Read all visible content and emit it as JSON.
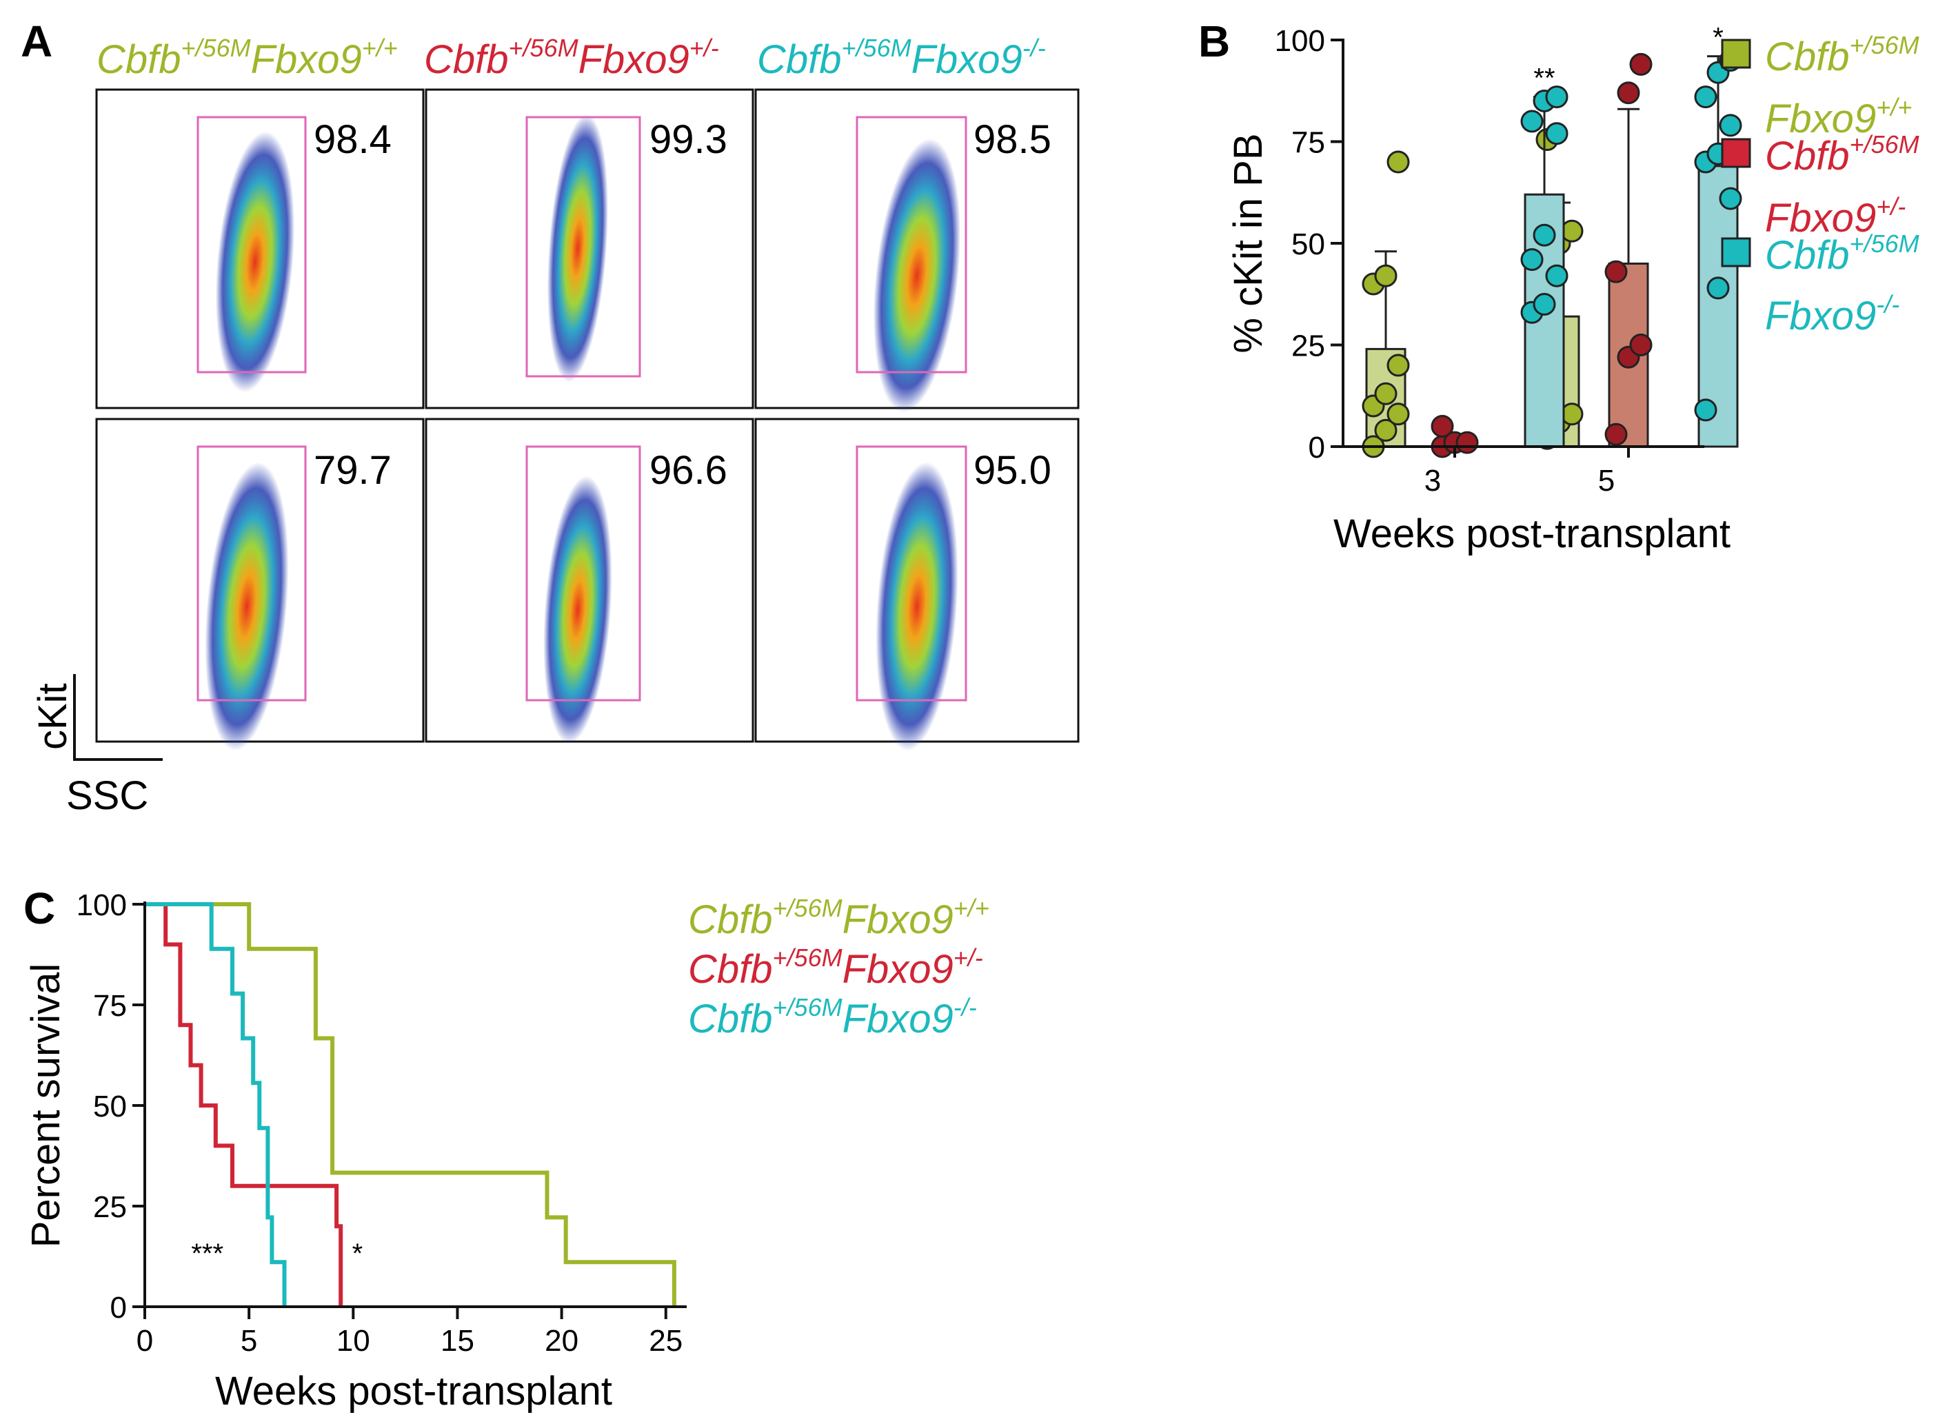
{
  "panels": {
    "a": {
      "letter": "A",
      "genotypes": [
        {
          "base": "Cbfb",
          "sup1": "+/56M",
          "gene2": "Fbxo9",
          "sup2": "+/+",
          "color": "#9fb52a"
        },
        {
          "base": "Cbfb",
          "sup1": "+/56M",
          "gene2": "Fbxo9",
          "sup2": "+/-",
          "color": "#d02536"
        },
        {
          "base": "Cbfb",
          "sup1": "+/56M",
          "gene2": "Fbxo9",
          "sup2": "-/-",
          "color": "#1cb9bd"
        }
      ],
      "gate_values": [
        [
          "98.4",
          "99.3",
          "98.5"
        ],
        [
          "79.7",
          "96.6",
          "95.0"
        ]
      ],
      "y_axis_label": "cKit",
      "x_axis_label": "SSC",
      "gate_color": "#e066b8"
    },
    "b": {
      "letter": "B",
      "legend": [
        {
          "line1": "Cbfb",
          "sup1": "+/56M",
          "line2": "Fbxo9",
          "sup2": "+/+",
          "color": "#9fb52a"
        },
        {
          "line1": "Cbfb",
          "sup1": "+/56M",
          "line2": "Fbxo9",
          "sup2": "+/-",
          "color": "#d02536"
        },
        {
          "line1": "Cbfb",
          "sup1": "+/56M",
          "line2": "Fbxo9",
          "sup2": "-/-",
          "color": "#1cb9bd"
        }
      ]
    },
    "c": {
      "letter": "C",
      "legend": [
        {
          "base": "Cbfb",
          "sup1": "+/56M",
          "gene2": "Fbxo9",
          "sup2": "+/+",
          "color": "#9fb52a"
        },
        {
          "base": "Cbfb",
          "sup1": "+/56M",
          "gene2": "Fbxo9",
          "sup2": "+/-",
          "color": "#d02536"
        },
        {
          "base": "Cbfb",
          "sup1": "+/56M",
          "gene2": "Fbxo9",
          "sup2": "-/-",
          "color": "#1cb9bd"
        }
      ]
    }
  },
  "chart_data": [
    {
      "id": "B",
      "type": "bar",
      "ylabel": "% cKit in PB",
      "xlabel": "Weeks post-transplant",
      "categories": [
        "3",
        "5"
      ],
      "ylim": [
        0,
        100
      ],
      "yticks": [
        0,
        25,
        50,
        75,
        100
      ],
      "series": [
        {
          "name": "Cbfb+/56M Fbxo9+/+",
          "fill": "#c9d68e",
          "point_color": "#9fb52a",
          "means": [
            24,
            32
          ],
          "sd_upper": [
            48,
            60
          ],
          "points": [
            [
              0,
              4,
              8,
              10,
              13,
              20,
              40,
              42,
              70
            ],
            [
              2,
              6,
              8,
              10,
              50,
              53,
              75.5
            ]
          ]
        },
        {
          "name": "Cbfb+/56M Fbxo9+/-",
          "fill": "#c97f6e",
          "point_color": "#9b1b24",
          "means": [
            1.5,
            45
          ],
          "sd_upper": [
            1.5,
            83
          ],
          "points": [
            [
              0,
              1,
              1,
              5
            ],
            [
              3,
              22,
              25,
              43,
              87,
              94
            ]
          ]
        },
        {
          "name": "Cbfb+/56M Fbxo9-/-",
          "fill": "#98d3d6",
          "point_color": "#1cb9bd",
          "means": [
            62,
            69
          ],
          "sd_upper": [
            86,
            96
          ],
          "points": [
            [
              33,
              35,
              42,
              46,
              52,
              77,
              80,
              85,
              86
            ],
            [
              9,
              39,
              61,
              70,
              72,
              79,
              86,
              92,
              95
            ]
          ]
        }
      ],
      "annotations": [
        {
          "category": "3",
          "text": "**"
        },
        {
          "category": "5",
          "text": "*"
        }
      ]
    },
    {
      "id": "C",
      "type": "line",
      "xlabel": "Weeks post-transplant",
      "ylabel": "Percent survival",
      "xlim": [
        0,
        26
      ],
      "ylim": [
        0,
        100
      ],
      "xticks": [
        0,
        5,
        10,
        15,
        20,
        25
      ],
      "yticks": [
        0,
        25,
        50,
        75,
        100
      ],
      "series": [
        {
          "name": "Cbfb+/56M Fbxo9+/+",
          "color": "#9fb52a",
          "x": [
            0,
            5,
            5,
            8.2,
            8.2,
            9,
            9,
            19.3,
            19.3,
            20.2,
            20.2,
            25.4,
            25.4
          ],
          "y": [
            100,
            100,
            88.9,
            88.9,
            66.7,
            66.7,
            33.3,
            33.3,
            22.2,
            22.2,
            11.1,
            11.1,
            0
          ]
        },
        {
          "name": "Cbfb+/56M Fbxo9+/-",
          "color": "#d02536",
          "x": [
            0,
            1,
            1,
            1.7,
            1.7,
            2.2,
            2.2,
            2.7,
            2.7,
            3.4,
            3.4,
            4.2,
            4.2,
            4.9,
            4.9,
            9.2,
            9.2,
            9.4,
            9.4
          ],
          "y": [
            100,
            100,
            90,
            90,
            70,
            70,
            60,
            60,
            50,
            50,
            40,
            40,
            30,
            30,
            30,
            30,
            20,
            20,
            0
          ]
        },
        {
          "name": "Cbfb+/56M Fbxo9-/-",
          "color": "#1cb9bd",
          "x": [
            0,
            3.2,
            3.2,
            4.2,
            4.2,
            4.7,
            4.7,
            5.2,
            5.2,
            5.5,
            5.5,
            5.9,
            5.9,
            6.1,
            6.1,
            6.7,
            6.7
          ],
          "y": [
            100,
            100,
            88.9,
            88.9,
            77.8,
            77.8,
            66.7,
            66.7,
            55.6,
            55.6,
            44.4,
            44.4,
            22.2,
            22.2,
            11.1,
            11.1,
            0
          ]
        }
      ],
      "annotations": [
        {
          "x": 3,
          "y": 11,
          "text": "***"
        },
        {
          "x": 10.2,
          "y": 11,
          "text": "*"
        }
      ]
    }
  ]
}
